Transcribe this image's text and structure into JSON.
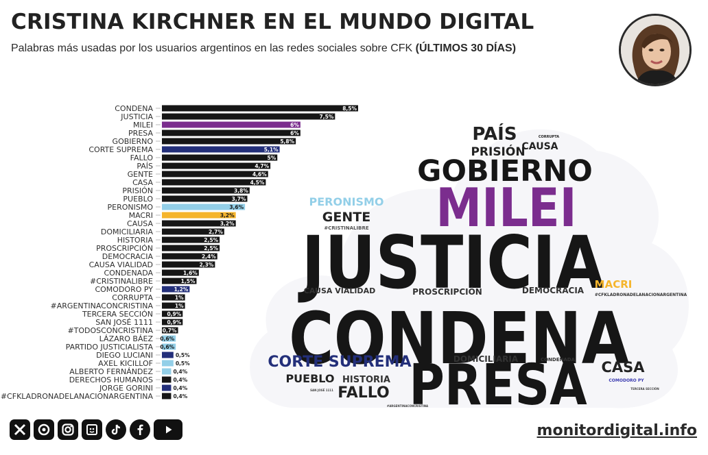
{
  "header": {
    "title": "CRISTINA KIRCHNER EN EL MUNDO DIGITAL",
    "subtitle": "Palabras más usadas por los usuarios argentinos en las redes sociales sobre CFK",
    "subtitle_bold": "(ÚLTIMOS 30 DÍAS)"
  },
  "footer": {
    "website": "monitordigital.info",
    "social_icons": [
      "x-icon",
      "threads-icon",
      "instagram-icon",
      "substack-icon",
      "tiktok-icon",
      "facebook-icon",
      "youtube-icon"
    ]
  },
  "colors": {
    "default": "#161616",
    "milei": "#7b2d8e",
    "corte_suprema": "#232f7a",
    "peronismo": "#93cfe8",
    "macri": "#f5b52c"
  },
  "chart_data": {
    "type": "bar",
    "orientation": "horizontal",
    "categories": [
      "CONDENA",
      "JUSTICIA",
      "MILEI",
      "PRESA",
      "GOBIERNO",
      "CORTE SUPREMA",
      "FALLO",
      "PAÍS",
      "GENTE",
      "CASA",
      "PRISIÓN",
      "PUEBLO",
      "PERONISMO",
      "MACRI",
      "CAUSA",
      "DOMICILIARIA",
      "HISTORIA",
      "PROSCRIPCIÓN",
      "DEMOCRACIA",
      "CAUSA VIALIDAD",
      "CONDENADA",
      "#CRISTINALIBRE",
      "COMODORO PY",
      "CORRUPTA",
      "#ARGENTINACONCRISTINA",
      "TERCERA SECCIÓN",
      "SAN JOSÉ 1111",
      "#TODOSCONCRISTINA",
      "LÁZARO BÁEZ",
      "PARTIDO JUSTICIALISTA",
      "DIEGO LUCIANI",
      "AXEL KICILLOF",
      "ALBERTO FERNÁNDEZ",
      "DERECHOS HUMANOS",
      "JORGE GORINI",
      "#CFKLADRONADELANACIONARGENTINA"
    ],
    "values": [
      8.5,
      7.5,
      6,
      6,
      5.8,
      5.1,
      5,
      4.7,
      4.6,
      4.5,
      3.8,
      3.7,
      3.6,
      3.2,
      3.2,
      2.7,
      2.5,
      2.5,
      2.4,
      2.3,
      1.6,
      1.5,
      1.2,
      1,
      1,
      0.9,
      0.9,
      0.7,
      0.6,
      0.6,
      0.5,
      0.5,
      0.4,
      0.4,
      0.4,
      0.4
    ],
    "labels": [
      "8,5%",
      "7,5%",
      "6%",
      "6%",
      "5,8%",
      "5,1%",
      "5%",
      "4,7%",
      "4,6%",
      "4,5%",
      "3,8%",
      "3,7%",
      "3,6%",
      "3,2%",
      "3,2%",
      "2,7%",
      "2,5%",
      "2,5%",
      "2,4%",
      "2,3%",
      "1,6%",
      "1,5%",
      "1,2%",
      "1%",
      "1%",
      "0,9%",
      "0,9%",
      "0,7%",
      "0,6%",
      "0,6%",
      "0,5%",
      "0,5%",
      "0,4%",
      "0,4%",
      "0,4%",
      "0,4%"
    ],
    "bar_colors": [
      "#161616",
      "#161616",
      "#7b2d8e",
      "#161616",
      "#161616",
      "#232f7a",
      "#161616",
      "#161616",
      "#161616",
      "#161616",
      "#161616",
      "#161616",
      "#93cfe8",
      "#f5b52c",
      "#161616",
      "#161616",
      "#161616",
      "#161616",
      "#161616",
      "#161616",
      "#161616",
      "#161616",
      "#232f7a",
      "#161616",
      "#161616",
      "#161616",
      "#161616",
      "#161616",
      "#93cfe8",
      "#93cfe8",
      "#232f7a",
      "#93cfe8",
      "#93cfe8",
      "#161616",
      "#232f7a",
      "#161616"
    ],
    "xlim": [
      0,
      8.5
    ],
    "grid": false,
    "legend": "none"
  },
  "word_cloud": {
    "words": [
      {
        "text": "PAÍS",
        "color": "#222222"
      },
      {
        "text": "PRISIÓN",
        "color": "#222222"
      },
      {
        "text": "CAUSA",
        "color": "#222222"
      },
      {
        "text": "CORRUPTA",
        "color": "#222222"
      },
      {
        "text": "GOBIERNO",
        "color": "#161616"
      },
      {
        "text": "PERONISMO",
        "color": "#93cfe8"
      },
      {
        "text": "MILEI",
        "color": "#7b2d8e"
      },
      {
        "text": "GENTE",
        "color": "#222222"
      },
      {
        "text": "#CRISTINALIBRE",
        "color": "#555555"
      },
      {
        "text": "JUSTICIA",
        "color": "#161616"
      },
      {
        "text": "MACRI",
        "color": "#f5b52c"
      },
      {
        "text": "#CFKLADRONADELANACIONARGENTINA",
        "color": "#333333"
      },
      {
        "text": "CAUSA VIALIDAD",
        "color": "#333333"
      },
      {
        "text": "PROSCRIPCIÓN",
        "color": "#333333"
      },
      {
        "text": "DEMOCRACIA",
        "color": "#333333"
      },
      {
        "text": "CONDENA",
        "color": "#161616"
      },
      {
        "text": "CORTE SUPREMA",
        "color": "#232f7a"
      },
      {
        "text": "DOMICILIARIA",
        "color": "#333333"
      },
      {
        "text": "CONDENADA",
        "color": "#333333"
      },
      {
        "text": "CASA",
        "color": "#222222"
      },
      {
        "text": "PUEBLO",
        "color": "#222222"
      },
      {
        "text": "HISTORIA",
        "color": "#333333"
      },
      {
        "text": "PRESA",
        "color": "#161616"
      },
      {
        "text": "COMODORO PY",
        "color": "#3a3ab0"
      },
      {
        "text": "FALLO",
        "color": "#222222"
      },
      {
        "text": "SAN JOSÉ 1111",
        "color": "#444444"
      },
      {
        "text": "TERCERA SECCIÓN",
        "color": "#444444"
      },
      {
        "text": "#ARGENTINACONCRISTINA",
        "color": "#444444"
      }
    ]
  }
}
